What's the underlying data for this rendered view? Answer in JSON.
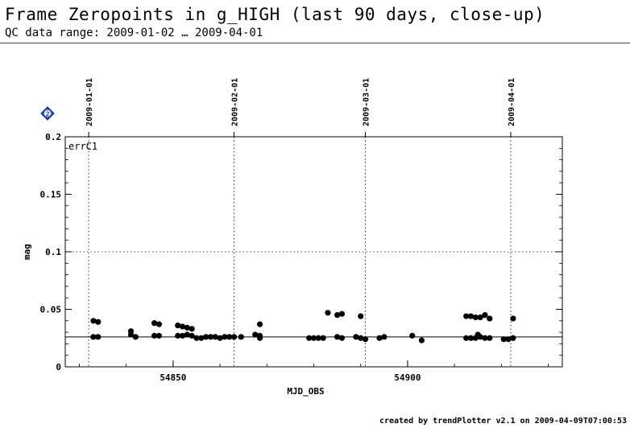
{
  "header": {
    "title": "Frame Zeropoints in g_HIGH (last 90 days, close-up)",
    "subtitle": "QC data range: 2009-01-02 … 2009-04-01"
  },
  "footer": {
    "text": "created by trendPlotter v2.1 on 2009-04-09T07:00:53"
  },
  "help_icon": {
    "glyph": "2",
    "color": "#2a52d6"
  },
  "chart_data": {
    "type": "scatter",
    "series_label": "errC1",
    "xlabel": "MJD_OBS",
    "ylabel": "mag",
    "xlim": [
      54827,
      54933
    ],
    "ylim": [
      0,
      0.2
    ],
    "x_ticks": [
      54850,
      54900
    ],
    "y_ticks": [
      0,
      0.05,
      0.1,
      0.15,
      0.2
    ],
    "y_tick_labels": [
      "0",
      "0.05",
      "0.1",
      "0.15",
      "0.2"
    ],
    "date_markers": [
      {
        "label": "2009-01-01",
        "x": 54832
      },
      {
        "label": "2009-02-01",
        "x": 54863
      },
      {
        "label": "2009-03-01",
        "x": 54891
      },
      {
        "label": "2009-04-01",
        "x": 54922
      }
    ],
    "reference_lines": [
      {
        "y": 0.026,
        "style": "solid"
      },
      {
        "y": 0.1,
        "style": "dotted"
      }
    ],
    "points": [
      [
        54833.0,
        0.04
      ],
      [
        54834.0,
        0.039
      ],
      [
        54833.0,
        0.026
      ],
      [
        54834.0,
        0.026
      ],
      [
        54841.0,
        0.031
      ],
      [
        54841.0,
        0.028
      ],
      [
        54842.0,
        0.026
      ],
      [
        54846.0,
        0.038
      ],
      [
        54847.0,
        0.037
      ],
      [
        54846.0,
        0.027
      ],
      [
        54847.0,
        0.027
      ],
      [
        54851.0,
        0.036
      ],
      [
        54852.0,
        0.035
      ],
      [
        54853.0,
        0.034
      ],
      [
        54854.0,
        0.033
      ],
      [
        54851.0,
        0.027
      ],
      [
        54852.0,
        0.027
      ],
      [
        54853.0,
        0.028
      ],
      [
        54854.0,
        0.027
      ],
      [
        54855.0,
        0.025
      ],
      [
        54856.0,
        0.025
      ],
      [
        54857.0,
        0.026
      ],
      [
        54858.0,
        0.026
      ],
      [
        54859.0,
        0.026
      ],
      [
        54860.0,
        0.025
      ],
      [
        54861.0,
        0.026
      ],
      [
        54862.0,
        0.026
      ],
      [
        54863.0,
        0.026
      ],
      [
        54864.5,
        0.026
      ],
      [
        54867.5,
        0.028
      ],
      [
        54868.5,
        0.027
      ],
      [
        54868.5,
        0.025
      ],
      [
        54868.5,
        0.037
      ],
      [
        54879.0,
        0.025
      ],
      [
        54880.0,
        0.025
      ],
      [
        54881.0,
        0.025
      ],
      [
        54882.0,
        0.025
      ],
      [
        54883.0,
        0.047
      ],
      [
        54885.0,
        0.045
      ],
      [
        54886.0,
        0.046
      ],
      [
        54885.0,
        0.026
      ],
      [
        54886.0,
        0.025
      ],
      [
        54889.0,
        0.026
      ],
      [
        54890.0,
        0.025
      ],
      [
        54891.0,
        0.024
      ],
      [
        54890.0,
        0.044
      ],
      [
        54894.0,
        0.025
      ],
      [
        54895.0,
        0.026
      ],
      [
        54901.0,
        0.027
      ],
      [
        54903.0,
        0.023
      ],
      [
        54912.5,
        0.044
      ],
      [
        54913.5,
        0.044
      ],
      [
        54914.5,
        0.043
      ],
      [
        54915.5,
        0.043
      ],
      [
        54916.5,
        0.045
      ],
      [
        54917.5,
        0.042
      ],
      [
        54912.5,
        0.025
      ],
      [
        54913.5,
        0.025
      ],
      [
        54914.5,
        0.025
      ],
      [
        54915.0,
        0.028
      ],
      [
        54915.5,
        0.026
      ],
      [
        54916.5,
        0.025
      ],
      [
        54917.5,
        0.025
      ],
      [
        54920.5,
        0.024
      ],
      [
        54921.5,
        0.024
      ],
      [
        54922.5,
        0.025
      ],
      [
        54922.5,
        0.042
      ]
    ]
  }
}
